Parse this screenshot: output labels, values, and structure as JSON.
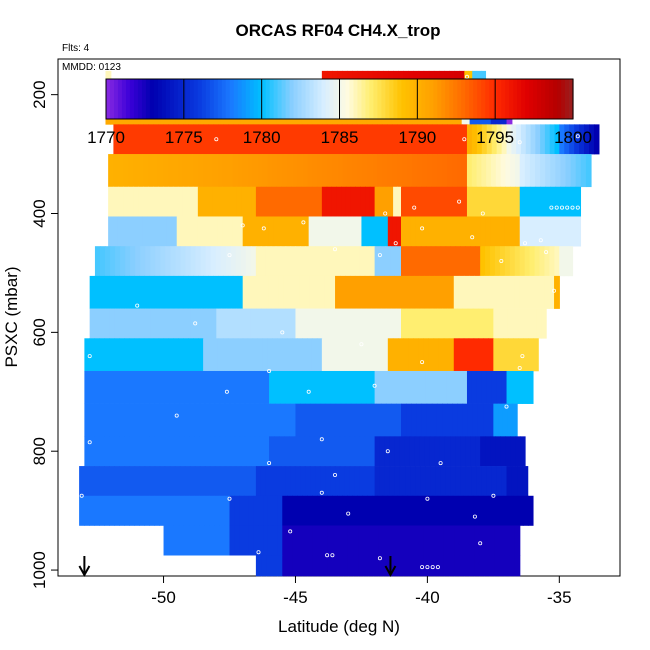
{
  "chart_data": {
    "type": "heatmap",
    "title": "ORCAS RF04 CH4.X_trop",
    "annotations": {
      "flights": "Flts: 4",
      "date": "MMDD: 0123"
    },
    "xlabel": "Latitude (deg N)",
    "ylabel": "PSXC (mbar)",
    "xlim": [
      -54.0,
      -32.7
    ],
    "ylim": [
      1010,
      140
    ],
    "y_reversed": true,
    "x_ticks": [
      -50,
      -45,
      -40,
      -35
    ],
    "x_tick_labels": [
      "-50",
      "-45",
      "-40",
      "-35"
    ],
    "y_ticks": [
      200,
      400,
      600,
      800,
      1000
    ],
    "y_tick_labels": [
      "200",
      "400",
      "600",
      "800",
      "1000"
    ],
    "colorbar": {
      "min": 1770,
      "max": 1800,
      "ticks": [
        1770,
        1775,
        1780,
        1785,
        1790,
        1795,
        1800
      ],
      "tick_labels": [
        "1770",
        "1775",
        "1780",
        "1785",
        "1790",
        "1795",
        "1800"
      ],
      "stops": [
        {
          "v": 1770,
          "c": "#8a2be2"
        },
        {
          "v": 1771.5,
          "c": "#3c00d8"
        },
        {
          "v": 1773,
          "c": "#0000b0"
        },
        {
          "v": 1776,
          "c": "#0a3be0"
        },
        {
          "v": 1778,
          "c": "#1a78ff"
        },
        {
          "v": 1780,
          "c": "#00c0ff"
        },
        {
          "v": 1782,
          "c": "#8ccfff"
        },
        {
          "v": 1784,
          "c": "#d8eeff"
        },
        {
          "v": 1785.5,
          "c": "#fffbe0"
        },
        {
          "v": 1787,
          "c": "#ffee70"
        },
        {
          "v": 1789,
          "c": "#ffc200"
        },
        {
          "v": 1791,
          "c": "#ffa000"
        },
        {
          "v": 1793,
          "c": "#ff6a00"
        },
        {
          "v": 1795,
          "c": "#ff2a00"
        },
        {
          "v": 1797,
          "c": "#e00000"
        },
        {
          "v": 1799,
          "c": "#b50000"
        },
        {
          "v": 1800,
          "c": "#9a2020"
        }
      ]
    },
    "bands": [
      {
        "p": [
          160,
          200
        ],
        "segments": [
          {
            "x": [
              -52.2,
              -52.0
            ],
            "v": 1786
          },
          {
            "x": [
              -44.0,
              -38.6
            ],
            "v": 1796,
            "v2": 1797.5
          },
          {
            "x": [
              -38.6,
              -38.3
            ],
            "v": 1789
          },
          {
            "x": [
              -38.3,
              -37.8
            ],
            "v": 1781
          }
        ]
      },
      {
        "p": [
          200,
          250
        ],
        "segments": [
          {
            "x": [
              -52.2,
              -38.7
            ],
            "v": 1790.5
          },
          {
            "x": [
              -38.7,
              -38.4
            ],
            "v": 1785
          },
          {
            "x": [
              -38.4,
              -37.6
            ],
            "v": 1777
          },
          {
            "x": [
              -37.6,
              -37.0
            ],
            "v": 1775
          },
          {
            "x": [
              -37.0,
              -36.8
            ],
            "v": 1770
          }
        ]
      },
      {
        "p": [
          250,
          300
        ],
        "segments": [
          {
            "x": [
              -51.9,
              -38.5
            ],
            "v": 1794.5
          },
          {
            "x": [
              -38.5,
              -37.0
            ],
            "v": 1790,
            "v2": 1786
          },
          {
            "x": [
              -37.0,
              -35.0
            ],
            "v": 1785,
            "v2": 1780
          },
          {
            "x": [
              -35.0,
              -33.5
            ],
            "v": 1778,
            "v2": 1773
          }
        ]
      },
      {
        "p": [
          300,
          355
        ],
        "segments": [
          {
            "x": [
              -52.1,
              -38.5
            ],
            "v": 1790,
            "v2": 1793
          },
          {
            "x": [
              -38.5,
              -36.5
            ],
            "v": 1787,
            "v2": 1785
          },
          {
            "x": [
              -36.5,
              -33.8
            ],
            "v": 1784,
            "v2": 1781
          }
        ]
      },
      {
        "p": [
          355,
          405
        ],
        "segments": [
          {
            "x": [
              -52.1,
              -48.7
            ],
            "v": 1786
          },
          {
            "x": [
              -48.7,
              -46.5
            ],
            "v": 1790
          },
          {
            "x": [
              -46.5,
              -44.0
            ],
            "v": 1793
          },
          {
            "x": [
              -44.0,
              -42.0
            ],
            "v": 1796
          },
          {
            "x": [
              -42.0,
              -41.3
            ],
            "v": 1791
          },
          {
            "x": [
              -41.3,
              -41.0
            ],
            "v": 1786
          },
          {
            "x": [
              -41.0,
              -38.5
            ],
            "v": 1794
          },
          {
            "x": [
              -38.5,
              -36.5
            ],
            "v": 1788
          },
          {
            "x": [
              -36.5,
              -34.2
            ],
            "v": 1780
          }
        ]
      },
      {
        "p": [
          405,
          455
        ],
        "segments": [
          {
            "x": [
              -52.1,
              -49.5
            ],
            "v": 1782
          },
          {
            "x": [
              -49.5,
              -47.0
            ],
            "v": 1786
          },
          {
            "x": [
              -47.0,
              -44.5
            ],
            "v": 1790
          },
          {
            "x": [
              -44.5,
              -42.5
            ],
            "v": 1785
          },
          {
            "x": [
              -42.5,
              -41.5
            ],
            "v": 1780
          },
          {
            "x": [
              -41.5,
              -41.0
            ],
            "v": 1796
          },
          {
            "x": [
              -41.0,
              -36.5
            ],
            "v": 1790
          },
          {
            "x": [
              -36.5,
              -34.2
            ],
            "v": 1784
          }
        ]
      },
      {
        "p": [
          455,
          505
        ],
        "segments": [
          {
            "x": [
              -52.6,
              -46.5
            ],
            "v": 1781,
            "v2": 1785
          },
          {
            "x": [
              -46.5,
              -42.0
            ],
            "v": 1786
          },
          {
            "x": [
              -42.0,
              -41.0
            ],
            "v": 1782
          },
          {
            "x": [
              -41.0,
              -38.0
            ],
            "v": 1793
          },
          {
            "x": [
              -38.0,
              -35.0
            ],
            "v": 1789,
            "v2": 1786
          },
          {
            "x": [
              -35.0,
              -34.5
            ],
            "v": 1785
          }
        ]
      },
      {
        "p": [
          505,
          560
        ],
        "segments": [
          {
            "x": [
              -52.8,
              -47.0
            ],
            "v": 1780
          },
          {
            "x": [
              -47.0,
              -43.5
            ],
            "v": 1786
          },
          {
            "x": [
              -43.5,
              -39.0
            ],
            "v": 1791
          },
          {
            "x": [
              -39.0,
              -36.5
            ],
            "v": 1786
          },
          {
            "x": [
              -36.5,
              -35.2
            ],
            "v": 1786
          },
          {
            "x": [
              -35.2,
              -35.0
            ],
            "v": 1790
          }
        ]
      },
      {
        "p": [
          560,
          610
        ],
        "segments": [
          {
            "x": [
              -52.8,
              -48.0
            ],
            "v": 1782
          },
          {
            "x": [
              -48.0,
              -45.0
            ],
            "v": 1783
          },
          {
            "x": [
              -45.0,
              -41.0
            ],
            "v": 1785
          },
          {
            "x": [
              -41.0,
              -37.5
            ],
            "v": 1787
          },
          {
            "x": [
              -37.5,
              -35.5
            ],
            "v": 1786
          }
        ]
      },
      {
        "p": [
          610,
          665
        ],
        "segments": [
          {
            "x": [
              -53.0,
              -48.5
            ],
            "v": 1780
          },
          {
            "x": [
              -48.5,
              -44.0
            ],
            "v": 1782
          },
          {
            "x": [
              -44.0,
              -41.5
            ],
            "v": 1785
          },
          {
            "x": [
              -41.5,
              -39.0
            ],
            "v": 1790
          },
          {
            "x": [
              -39.0,
              -37.5
            ],
            "v": 1795
          },
          {
            "x": [
              -37.5,
              -35.8
            ],
            "v": 1788
          }
        ]
      },
      {
        "p": [
          665,
          720
        ],
        "segments": [
          {
            "x": [
              -53.0,
              -46.0
            ],
            "v": 1778
          },
          {
            "x": [
              -46.0,
              -42.0
            ],
            "v": 1780
          },
          {
            "x": [
              -42.0,
              -38.5
            ],
            "v": 1782
          },
          {
            "x": [
              -38.5,
              -37.0
            ],
            "v": 1776
          },
          {
            "x": [
              -37.0,
              -36.0
            ],
            "v": 1780
          }
        ]
      },
      {
        "p": [
          720,
          775
        ],
        "segments": [
          {
            "x": [
              -53.0,
              -45.0
            ],
            "v": 1778
          },
          {
            "x": [
              -45.0,
              -41.0
            ],
            "v": 1777
          },
          {
            "x": [
              -41.0,
              -37.5
            ],
            "v": 1776
          },
          {
            "x": [
              -37.5,
              -36.6
            ],
            "v": 1779
          }
        ]
      },
      {
        "p": [
          775,
          825
        ],
        "segments": [
          {
            "x": [
              -53.0,
              -46.0
            ],
            "v": 1778
          },
          {
            "x": [
              -46.0,
              -42.0
            ],
            "v": 1777
          },
          {
            "x": [
              -42.0,
              -38.0
            ],
            "v": 1775
          },
          {
            "x": [
              -38.0,
              -36.3
            ],
            "v": 1774
          }
        ]
      },
      {
        "p": [
          825,
          875
        ],
        "segments": [
          {
            "x": [
              -53.2,
              -46.5
            ],
            "v": 1777
          },
          {
            "x": [
              -46.5,
              -42.0
            ],
            "v": 1776
          },
          {
            "x": [
              -42.0,
              -37.0
            ],
            "v": 1775
          },
          {
            "x": [
              -37.0,
              -36.2
            ],
            "v": 1774
          }
        ]
      },
      {
        "p": [
          875,
          925
        ],
        "segments": [
          {
            "x": [
              -53.2,
              -47.5
            ],
            "v": 1778
          },
          {
            "x": [
              -47.5,
              -45.5
            ],
            "v": 1776
          },
          {
            "x": [
              -45.5,
              -36.0
            ],
            "v": 1773
          }
        ]
      },
      {
        "p": [
          925,
          975
        ],
        "segments": [
          {
            "x": [
              -50.0,
              -47.5
            ],
            "v": 1778
          },
          {
            "x": [
              -47.5,
              -45.5
            ],
            "v": 1776
          },
          {
            "x": [
              -45.5,
              -36.5
            ],
            "v": 1772.5
          }
        ]
      },
      {
        "p": [
          975,
          1010
        ],
        "segments": [
          {
            "x": [
              -46.5,
              -45.5
            ],
            "v": 1776
          },
          {
            "x": [
              -45.5,
              -36.5
            ],
            "v": 1772.5
          }
        ]
      }
    ],
    "arrows_x": [
      -53.0,
      -41.4
    ],
    "observation_points": [
      [
        -47.5,
        175
      ],
      [
        -38.5,
        170
      ],
      [
        -38.9,
        190
      ],
      [
        -38.7,
        220
      ],
      [
        -52.3,
        235
      ],
      [
        -50.1,
        235
      ],
      [
        -40.7,
        235
      ],
      [
        -48.0,
        275
      ],
      [
        -38.6,
        275
      ],
      [
        -36.5,
        280
      ],
      [
        -34.3,
        270
      ],
      [
        -47.0,
        420
      ],
      [
        -44.7,
        415
      ],
      [
        -40.5,
        390
      ],
      [
        -38.8,
        380
      ],
      [
        -37.9,
        400
      ],
      [
        -41.6,
        400
      ],
      [
        -46.2,
        425
      ],
      [
        -40.2,
        425
      ],
      [
        -41.2,
        450
      ],
      [
        -38.3,
        440
      ],
      [
        -41.8,
        470
      ],
      [
        -47.5,
        470
      ],
      [
        -43.5,
        460
      ],
      [
        -36.3,
        450
      ],
      [
        -35.7,
        445
      ],
      [
        -37.2,
        480
      ],
      [
        -34.9,
        390
      ],
      [
        -34.7,
        390
      ],
      [
        -34.5,
        390
      ],
      [
        -34.3,
        390
      ],
      [
        -34.1,
        390
      ],
      [
        -33.9,
        390
      ],
      [
        -33.7,
        390
      ],
      [
        -35.1,
        390
      ],
      [
        -35.3,
        390
      ],
      [
        -35.5,
        465
      ],
      [
        -35.2,
        530
      ],
      [
        -35.0,
        575
      ],
      [
        -48.8,
        585
      ],
      [
        -51.0,
        555
      ],
      [
        -45.5,
        600
      ],
      [
        -42.5,
        620
      ],
      [
        -40.2,
        650
      ],
      [
        -52.8,
        640
      ],
      [
        -46.0,
        665
      ],
      [
        -44.5,
        700
      ],
      [
        -47.6,
        700
      ],
      [
        -42.0,
        690
      ],
      [
        -36.5,
        660
      ],
      [
        -37.0,
        725
      ],
      [
        -36.4,
        640
      ],
      [
        -49.5,
        740
      ],
      [
        -44.0,
        780
      ],
      [
        -41.5,
        800
      ],
      [
        -39.5,
        820
      ],
      [
        -52.8,
        785
      ],
      [
        -46.0,
        820
      ],
      [
        -43.5,
        840
      ],
      [
        -53.1,
        875
      ],
      [
        -47.5,
        880
      ],
      [
        -44.0,
        870
      ],
      [
        -40.0,
        880
      ],
      [
        -37.5,
        875
      ],
      [
        -43.0,
        905
      ],
      [
        -38.2,
        910
      ],
      [
        -45.2,
        935
      ],
      [
        -46.4,
        970
      ],
      [
        -43.8,
        975
      ],
      [
        -43.6,
        975
      ],
      [
        -41.8,
        980
      ],
      [
        -38.0,
        955
      ],
      [
        -36.2,
        990
      ],
      [
        -40.0,
        995
      ],
      [
        -39.8,
        995
      ],
      [
        -39.6,
        995
      ],
      [
        -40.2,
        995
      ]
    ]
  }
}
